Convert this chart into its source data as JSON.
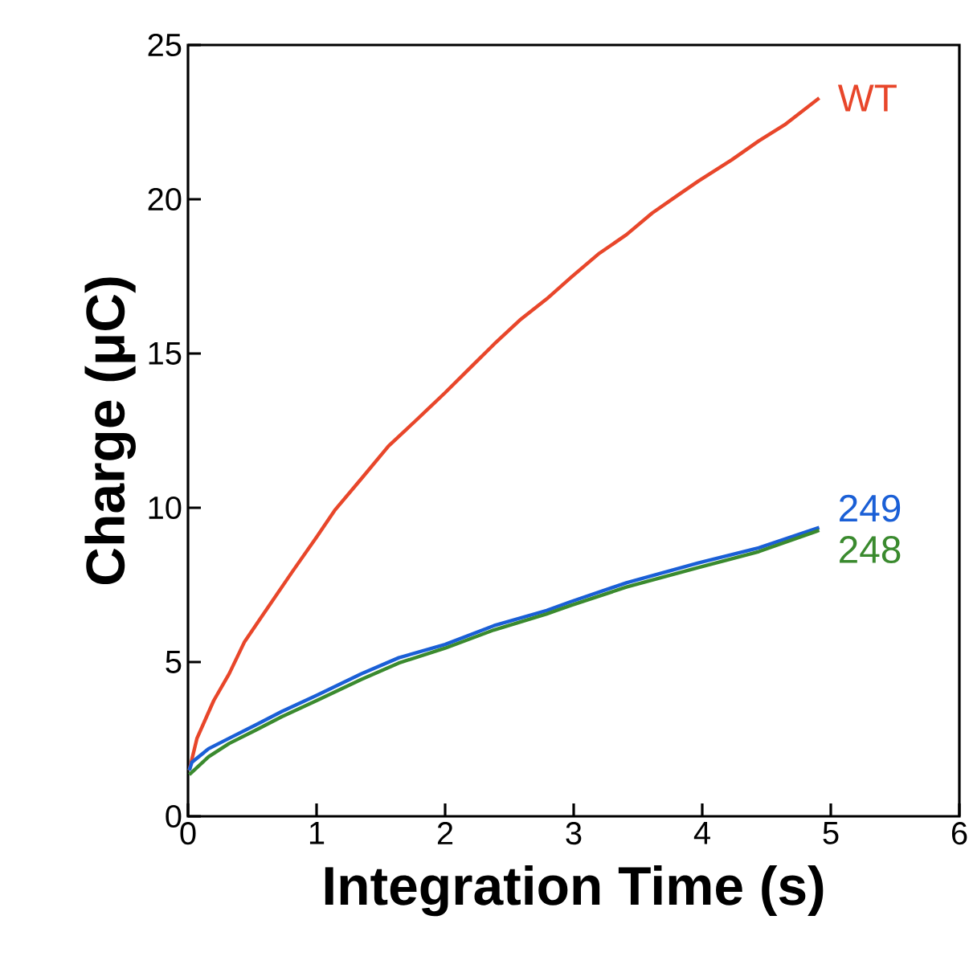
{
  "chart_data": {
    "type": "line",
    "xlabel": "Integration Time (s)",
    "ylabel": "Charge (μC)",
    "xlim": [
      0,
      6
    ],
    "ylim": [
      0,
      25
    ],
    "xticks": [
      0,
      1,
      2,
      3,
      4,
      5,
      6
    ],
    "yticks": [
      0,
      5,
      10,
      15,
      20,
      25
    ],
    "grid": false,
    "legend": false,
    "marker": "none",
    "line_style": "solid",
    "series": [
      {
        "name": "WT",
        "color": "#e8462a",
        "x": [
          0.01,
          0.03,
          0.07,
          0.2,
          0.32,
          0.44,
          0.61,
          0.81,
          1.0,
          1.14,
          1.35,
          1.56,
          1.76,
          2.0,
          2.21,
          2.38,
          2.58,
          2.79,
          2.98,
          3.2,
          3.41,
          3.61,
          3.82,
          3.97,
          4.23,
          4.44,
          4.64,
          4.91
        ],
        "values": [
          1.49,
          1.84,
          2.53,
          3.75,
          4.62,
          5.66,
          6.7,
          7.92,
          9.05,
          9.91,
          10.95,
          12.0,
          12.78,
          13.73,
          14.6,
          15.3,
          16.08,
          16.77,
          17.47,
          18.25,
          18.85,
          19.55,
          20.16,
          20.59,
          21.28,
          21.89,
          22.41,
          23.28
        ]
      },
      {
        "name": "249",
        "color": "#1a5fd6",
        "x": [
          0.01,
          0.03,
          0.16,
          0.32,
          0.53,
          0.73,
          1.0,
          1.35,
          1.64,
          2.0,
          2.38,
          2.79,
          2.98,
          3.41,
          3.97,
          4.44,
          4.91
        ],
        "values": [
          1.49,
          1.75,
          2.19,
          2.53,
          2.97,
          3.4,
          3.92,
          4.62,
          5.14,
          5.57,
          6.18,
          6.67,
          6.96,
          7.57,
          8.21,
          8.7,
          9.36
        ]
      },
      {
        "name": "248",
        "color": "#3a8a2e",
        "x": [
          0.01,
          0.16,
          0.32,
          0.53,
          0.73,
          1.0,
          1.35,
          1.64,
          2.0,
          2.38,
          2.79,
          2.98,
          3.41,
          3.97,
          4.44,
          4.91
        ],
        "values": [
          1.35,
          1.93,
          2.36,
          2.8,
          3.23,
          3.75,
          4.44,
          4.97,
          5.45,
          6.04,
          6.56,
          6.84,
          7.43,
          8.06,
          8.58,
          9.27
        ]
      }
    ]
  }
}
